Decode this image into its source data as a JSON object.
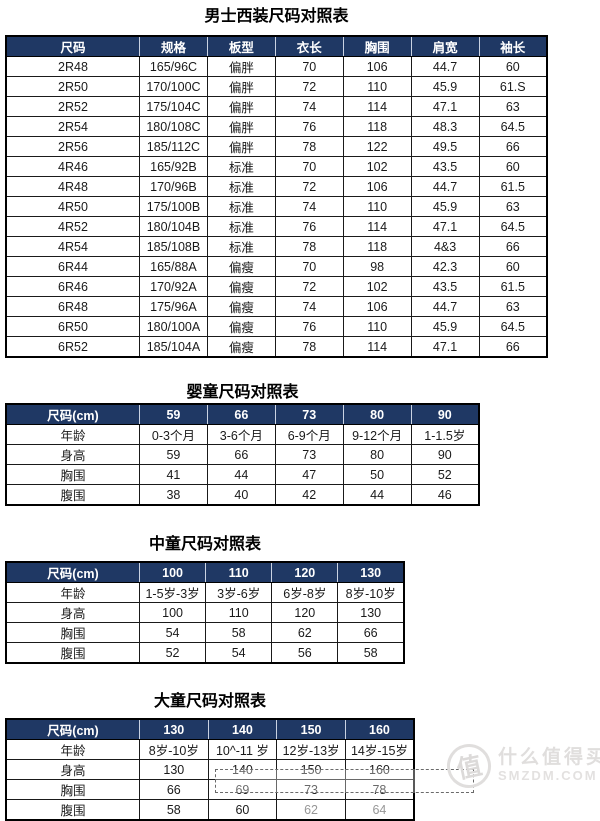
{
  "colors": {
    "header_bg": "#1F3864",
    "header_text": "#ffffff",
    "grid": "#1a1a1a",
    "page_bg": "#ffffff"
  },
  "tables": [
    {
      "title": "男士西装尺码对照表",
      "header": [
        "尺码",
        "规格",
        "板型",
        "衣长",
        "胸围",
        "肩宽",
        "袖长"
      ],
      "rows": [
        [
          "2R48",
          "165/96C",
          "偏胖",
          "70",
          "106",
          "44.7",
          "60"
        ],
        [
          "2R50",
          "170/100C",
          "偏胖",
          "72",
          "110",
          "45.9",
          "61.S"
        ],
        [
          "2R52",
          "175/104C",
          "偏胖",
          "74",
          "114",
          "47.1",
          "63"
        ],
        [
          "2R54",
          "180/108C",
          "偏胖",
          "76",
          "118",
          "48.3",
          "64.5"
        ],
        [
          "2R56",
          "185/112C",
          "偏胖",
          "78",
          "122",
          "49.5",
          "66"
        ],
        [
          "4R46",
          "165/92B",
          "标准",
          "70",
          "102",
          "43.5",
          "60"
        ],
        [
          "4R48",
          "170/96B",
          "标准",
          "72",
          "106",
          "44.7",
          "61.5"
        ],
        [
          "4R50",
          "175/100B",
          "标准",
          "74",
          "110",
          "45.9",
          "63"
        ],
        [
          "4R52",
          "180/104B",
          "标准",
          "76",
          "114",
          "47.1",
          "64.5"
        ],
        [
          "4R54",
          "185/108B",
          "标准",
          "78",
          "118",
          "4&3",
          "66"
        ],
        [
          "6R44",
          "165/88A",
          "偏瘦",
          "70",
          "98",
          "42.3",
          "60"
        ],
        [
          "6R46",
          "170/92A",
          "偏瘦",
          "72",
          "102",
          "43.5",
          "61.5"
        ],
        [
          "6R48",
          "175/96A",
          "偏瘦",
          "74",
          "106",
          "44.7",
          "63"
        ],
        [
          "6R50",
          "180/100A",
          "偏瘦",
          "76",
          "110",
          "45.9",
          "64.5"
        ],
        [
          "6R52",
          "185/104A",
          "偏瘦",
          "78",
          "114",
          "47.1",
          "66"
        ]
      ]
    },
    {
      "title": "婴童尺码对照表",
      "header": [
        "尺码(cm)",
        "59",
        "66",
        "73",
        "80",
        "90"
      ],
      "rows": [
        [
          "年龄",
          "0-3个月",
          "3-6个月",
          "6-9个月",
          "9-12个月",
          "1-1.5岁"
        ],
        [
          "身高",
          "59",
          "66",
          "73",
          "80",
          "90"
        ],
        [
          "胸围",
          "41",
          "44",
          "47",
          "50",
          "52"
        ],
        [
          "腹围",
          "38",
          "40",
          "42",
          "44",
          "46"
        ]
      ]
    },
    {
      "title": "中童尺码对照表",
      "header": [
        "尺码(cm)",
        "100",
        "110",
        "120",
        "130"
      ],
      "rows": [
        [
          "年龄",
          "1-5岁-3岁",
          "3岁-6岁",
          "6岁-8岁",
          "8岁-10岁"
        ],
        [
          "身高",
          "100",
          "110",
          "120",
          "130"
        ],
        [
          "胸围",
          "54",
          "58",
          "62",
          "66"
        ],
        [
          "腹围",
          "52",
          "54",
          "56",
          "58"
        ]
      ]
    },
    {
      "title": "大童尺码对照表",
      "header": [
        "尺码(cm)",
        "130",
        "140",
        "150",
        "160"
      ],
      "rows": [
        [
          "年龄",
          "8岁-10岁",
          "10^-11 岁",
          "12岁-13岁",
          "14岁-15岁"
        ],
        [
          "身高",
          "130",
          "140",
          "150",
          "160"
        ],
        [
          "胸围",
          "66",
          "69",
          "73",
          "78"
        ],
        [
          "腹围",
          "58",
          "60",
          "62",
          "64"
        ]
      ]
    }
  ],
  "watermark": {
    "logo_char": "值",
    "line1": "什么值得买",
    "line2": "SMZDM.COM"
  }
}
